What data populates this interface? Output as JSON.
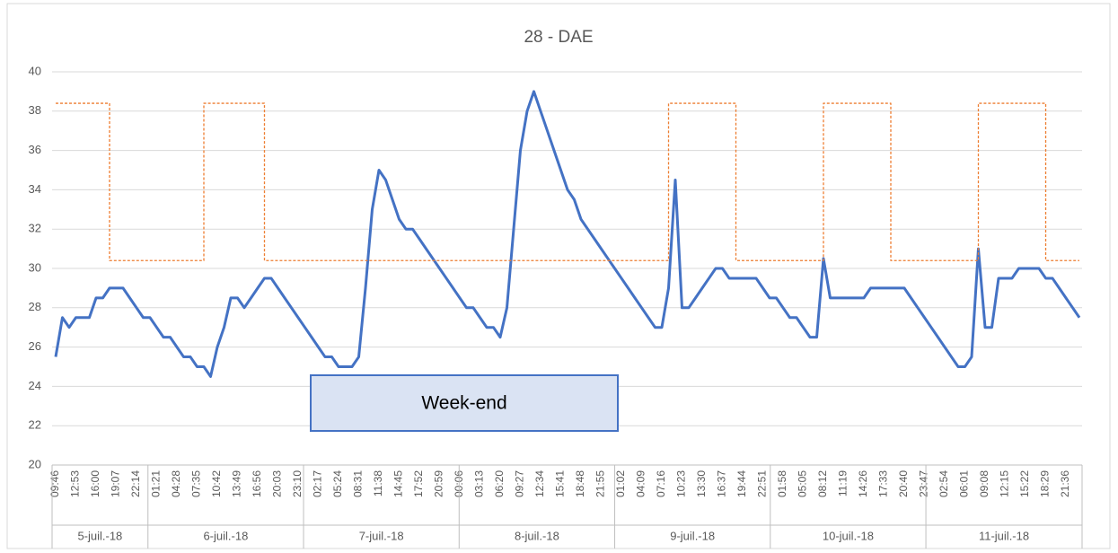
{
  "chart_data": {
    "type": "line",
    "title": "28 - DAE",
    "annotation": "Week-end",
    "categories": [
      "09:46",
      null,
      null,
      "12:53",
      null,
      null,
      "16:00",
      null,
      null,
      "19:07",
      null,
      null,
      "22:14",
      null,
      null,
      "01:21",
      null,
      null,
      "04:28",
      null,
      null,
      "07:35",
      null,
      null,
      "10:42",
      null,
      null,
      "13:49",
      null,
      null,
      "16:56",
      null,
      null,
      "20:03",
      null,
      null,
      "23:10",
      null,
      null,
      "02:17",
      null,
      null,
      "05:24",
      null,
      null,
      "08:31",
      null,
      null,
      "11:38",
      null,
      null,
      "14:45",
      null,
      null,
      "17:52",
      null,
      null,
      "20:59",
      null,
      null,
      "00:06",
      null,
      null,
      "03:13",
      null,
      null,
      "06:20",
      null,
      null,
      "09:27",
      null,
      null,
      "12:34",
      null,
      null,
      "15:41",
      null,
      null,
      "18:48",
      null,
      null,
      "21:55",
      null,
      null,
      "01:02",
      null,
      null,
      "04:09",
      null,
      null,
      "07:16",
      null,
      null,
      "10:23",
      null,
      null,
      "13:30",
      null,
      null,
      "16:37",
      null,
      null,
      "19:44",
      null,
      null,
      "22:51",
      null,
      null,
      "01:58",
      null,
      null,
      "05:05",
      null,
      null,
      "08:12",
      null,
      null,
      "11:19",
      null,
      null,
      "14:26",
      null,
      null,
      "17:33",
      null,
      null,
      "20:40",
      null,
      null,
      "23:47",
      null,
      null,
      "02:54",
      null,
      null,
      "06:01",
      null,
      null,
      "09:08",
      null,
      null,
      "12:15",
      null,
      null,
      "15:22",
      null,
      null,
      "18:29",
      null,
      null,
      "21:36",
      null,
      null
    ],
    "x_groups": [
      "5-juil.-18",
      "6-juil.-18",
      "7-juil.-18",
      "8-juil.-18",
      "9-juil.-18",
      "10-juil.-18",
      "11-juil.-18"
    ],
    "series": [
      {
        "color": "#4472c4",
        "step": false,
        "dashed": false,
        "values": [
          25.5,
          27.5,
          27,
          27.5,
          27.5,
          27.5,
          28.5,
          28.5,
          29,
          29,
          29,
          28.5,
          28,
          27.5,
          27.5,
          27,
          26.5,
          26.5,
          26,
          25.5,
          25.5,
          25,
          25,
          24.5,
          26,
          27,
          28.5,
          28.5,
          28,
          28.5,
          29,
          29.5,
          29.5,
          29,
          28.5,
          28,
          27.5,
          27,
          26.5,
          26,
          25.5,
          25.5,
          25,
          25,
          25,
          25.5,
          29,
          33,
          35,
          34.5,
          33.5,
          32.5,
          32,
          32,
          31.5,
          31,
          30.5,
          30,
          29.5,
          29,
          28.5,
          28,
          28,
          27.5,
          27,
          27,
          26.5,
          28,
          32,
          36,
          38,
          39,
          38,
          37,
          36,
          35,
          34,
          33.5,
          32.5,
          32,
          31.5,
          31,
          30.5,
          30,
          29.5,
          29,
          28.5,
          28,
          27.5,
          27,
          27,
          29,
          34.5,
          28,
          28,
          28.5,
          29,
          29.5,
          30,
          30,
          29.5,
          29.5,
          29.5,
          29.5,
          29.5,
          29,
          28.5,
          28.5,
          28,
          27.5,
          27.5,
          27,
          26.5,
          26.5,
          30.5,
          28.5,
          28.5,
          28.5,
          28.5,
          28.5,
          28.5,
          29,
          29,
          29,
          29,
          29,
          29,
          28.5,
          28,
          27.5,
          27,
          26.5,
          26,
          25.5,
          25,
          25,
          25.5,
          31,
          27,
          27,
          29.5,
          29.5,
          29.5,
          30,
          30,
          30,
          30,
          29.5,
          29.5,
          29,
          28.5,
          28,
          27.5
        ]
      },
      {
        "color": "#ed7d31",
        "step": true,
        "dashed": true,
        "values": [
          38.4,
          38.4,
          38.4,
          38.4,
          38.4,
          38.4,
          38.4,
          38.4,
          30.4,
          30.4,
          30.4,
          30.4,
          30.4,
          30.4,
          30.4,
          30.4,
          30.4,
          30.4,
          30.4,
          30.4,
          30.4,
          30.4,
          38.4,
          38.4,
          38.4,
          38.4,
          38.4,
          38.4,
          38.4,
          38.4,
          38.4,
          30.4,
          30.4,
          30.4,
          30.4,
          30.4,
          30.4,
          30.4,
          30.4,
          30.4,
          30.4,
          30.4,
          30.4,
          30.4,
          30.4,
          30.4,
          30.4,
          30.4,
          30.4,
          30.4,
          30.4,
          30.4,
          30.4,
          30.4,
          30.4,
          30.4,
          30.4,
          30.4,
          30.4,
          30.4,
          30.4,
          30.4,
          30.4,
          30.4,
          30.4,
          30.4,
          30.4,
          30.4,
          30.4,
          30.4,
          30.4,
          30.4,
          30.4,
          30.4,
          30.4,
          30.4,
          30.4,
          30.4,
          30.4,
          30.4,
          30.4,
          30.4,
          30.4,
          30.4,
          30.4,
          30.4,
          30.4,
          30.4,
          30.4,
          30.4,
          30.4,
          38.4,
          38.4,
          38.4,
          38.4,
          38.4,
          38.4,
          38.4,
          38.4,
          38.4,
          38.4,
          30.4,
          30.4,
          30.4,
          30.4,
          30.4,
          30.4,
          30.4,
          30.4,
          30.4,
          30.4,
          30.4,
          30.4,
          30.4,
          38.4,
          38.4,
          38.4,
          38.4,
          38.4,
          38.4,
          38.4,
          38.4,
          38.4,
          38.4,
          30.4,
          30.4,
          30.4,
          30.4,
          30.4,
          30.4,
          30.4,
          30.4,
          30.4,
          30.4,
          30.4,
          30.4,
          30.4,
          38.4,
          38.4,
          38.4,
          38.4,
          38.4,
          38.4,
          38.4,
          38.4,
          38.4,
          38.4,
          30.4,
          30.4,
          30.4,
          30.4,
          30.4,
          30.4
        ]
      }
    ],
    "ylim": [
      20,
      40
    ],
    "yticks": [
      20,
      22,
      24,
      26,
      28,
      30,
      32,
      34,
      36,
      38,
      40
    ],
    "grid": true
  }
}
